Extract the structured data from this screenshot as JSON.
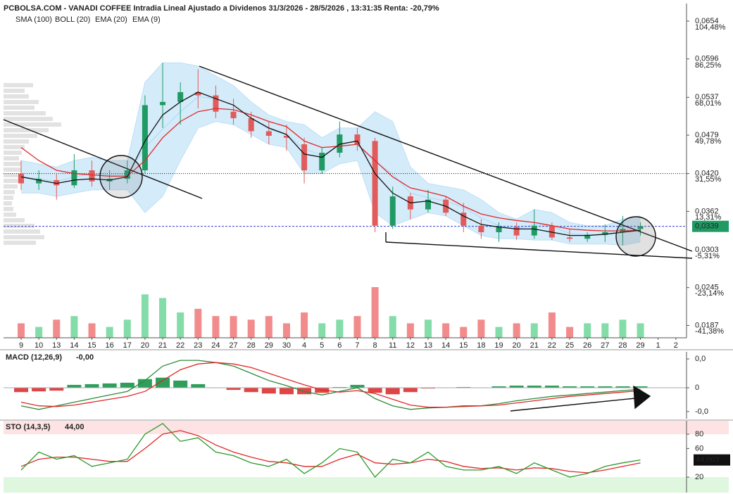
{
  "header": {
    "title": "PCBOLSA.COM - VANADI COFFEE Intradia Lineal Ajustado a Dividenos 31/3/2026 - 28/5/2026 , 13:31:35 Renta: -20,79%"
  },
  "chart_data": [
    {
      "type": "candlestick",
      "categories": [
        "9",
        "10",
        "13",
        "14",
        "15",
        "16",
        "17",
        "20",
        "21",
        "22",
        "23",
        "24",
        "27",
        "28",
        "29",
        "30",
        "4",
        "5",
        "6",
        "7",
        "8",
        "11",
        "12",
        "13",
        "14",
        "15",
        "18",
        "19",
        "20",
        "21",
        "22",
        "25",
        "26",
        "27",
        "28",
        "29",
        "1",
        "2"
      ],
      "open": [
        0.042,
        0.0405,
        0.041,
        0.0402,
        0.0425,
        0.0408,
        0.0412,
        0.0425,
        0.0525,
        0.053,
        0.0545,
        0.054,
        0.0515,
        0.0505,
        0.0485,
        0.0478,
        0.0465,
        0.0425,
        0.0452,
        0.048,
        0.047,
        0.034,
        0.0385,
        0.0365,
        0.038,
        0.036,
        0.034,
        0.033,
        0.0338,
        0.0325,
        0.034,
        0.0322,
        0.032,
        0.0326,
        0.033,
        0.0335,
        null,
        null
      ],
      "high": [
        0.044,
        0.0425,
        0.042,
        0.045,
        0.044,
        0.0425,
        0.044,
        0.054,
        0.059,
        0.056,
        0.058,
        0.0555,
        0.0535,
        0.0515,
        0.05,
        0.0495,
        0.0475,
        0.046,
        0.05,
        0.049,
        0.0475,
        0.04,
        0.039,
        0.0395,
        0.0385,
        0.0375,
        0.035,
        0.0345,
        0.0345,
        0.0365,
        0.0345,
        0.0335,
        0.033,
        0.0342,
        0.0355,
        0.0345,
        null,
        null
      ],
      "low": [
        0.0395,
        0.0395,
        0.038,
        0.0398,
        0.04,
        0.0395,
        0.0405,
        0.042,
        0.049,
        0.0495,
        0.052,
        0.0505,
        0.0495,
        0.0475,
        0.0465,
        0.0455,
        0.0405,
        0.042,
        0.0445,
        0.0455,
        0.033,
        0.0335,
        0.035,
        0.036,
        0.0355,
        0.033,
        0.032,
        0.0315,
        0.0318,
        0.032,
        0.0318,
        0.0315,
        0.0315,
        0.0315,
        0.031,
        0.0325,
        null,
        null
      ],
      "close": [
        0.0405,
        0.0412,
        0.0402,
        0.0425,
        0.0408,
        0.0412,
        0.0425,
        0.0525,
        0.053,
        0.0545,
        0.054,
        0.0515,
        0.0505,
        0.0485,
        0.0478,
        0.0475,
        0.0425,
        0.0452,
        0.048,
        0.0465,
        0.034,
        0.0385,
        0.0365,
        0.038,
        0.036,
        0.034,
        0.033,
        0.0338,
        0.0325,
        0.034,
        0.0322,
        0.032,
        0.0326,
        0.033,
        0.0335,
        0.0339,
        null,
        null
      ],
      "volume": [
        20,
        15,
        25,
        30,
        20,
        15,
        25,
        60,
        55,
        35,
        40,
        30,
        30,
        25,
        30,
        20,
        35,
        20,
        25,
        30,
        70,
        30,
        20,
        25,
        20,
        15,
        25,
        15,
        20,
        20,
        35,
        15,
        20,
        20,
        25,
        20,
        null,
        null
      ],
      "up_color": "#1f9a63",
      "down_color": "#e25b5b",
      "volume_up_color": "#84dca8",
      "volume_down_color": "#f28b8b",
      "series": [
        {
          "name": "SMA (100)",
          "color": "#a9d8f5",
          "values": [
            0.0415,
            0.0412,
            0.0408,
            0.0415,
            0.042,
            0.0418,
            0.0418,
            0.046,
            0.0488,
            0.0515,
            0.0538,
            0.0535,
            0.0525,
            0.0505,
            0.0488,
            0.048,
            0.0458,
            0.0448,
            0.0462,
            0.0465,
            0.0438,
            0.042,
            0.039,
            0.0383,
            0.0378,
            0.0368,
            0.0352,
            0.034,
            0.0335,
            0.0342,
            0.0339,
            0.0328,
            0.0326,
            0.0326,
            0.033,
            0.0335,
            null,
            null
          ]
        },
        {
          "name": "BOLL (20)",
          "color": "#cccccc",
          "fill": "#d4ebfa",
          "upper": [
            0.044,
            0.0435,
            0.043,
            0.044,
            0.0445,
            0.044,
            0.044,
            0.056,
            0.059,
            0.059,
            0.0585,
            0.057,
            0.0555,
            0.053,
            0.051,
            0.05,
            0.0495,
            0.0475,
            0.049,
            0.049,
            0.0515,
            0.05,
            0.043,
            0.0405,
            0.04,
            0.0395,
            0.038,
            0.036,
            0.035,
            0.0365,
            0.036,
            0.0345,
            0.034,
            0.034,
            0.035,
            0.0355,
            null,
            null
          ],
          "lower": [
            0.039,
            0.039,
            0.0385,
            0.039,
            0.0395,
            0.0395,
            0.0395,
            0.036,
            0.0385,
            0.044,
            0.049,
            0.05,
            0.0495,
            0.048,
            0.0465,
            0.046,
            0.042,
            0.042,
            0.0435,
            0.044,
            0.036,
            0.034,
            0.035,
            0.036,
            0.0355,
            0.034,
            0.0325,
            0.032,
            0.032,
            0.0318,
            0.0318,
            0.0312,
            0.0312,
            0.0312,
            0.031,
            0.0315,
            null,
            null
          ]
        },
        {
          "name": "EMA (20)",
          "color": "#e02828",
          "values": [
            0.046,
            0.044,
            0.0425,
            0.042,
            0.0418,
            0.0416,
            0.0416,
            0.044,
            0.0475,
            0.05,
            0.0515,
            0.052,
            0.0518,
            0.051,
            0.05,
            0.0492,
            0.047,
            0.046,
            0.0462,
            0.0465,
            0.044,
            0.0415,
            0.0398,
            0.0392,
            0.0385,
            0.037,
            0.0358,
            0.0352,
            0.0348,
            0.0345,
            0.034,
            0.0335,
            0.0333,
            0.0332,
            0.0332,
            0.0333,
            null,
            null
          ]
        },
        {
          "name": "EMA (9)",
          "color": "#111111",
          "values": [
            0.0415,
            0.041,
            0.0405,
            0.041,
            0.0412,
            0.041,
            0.0415,
            0.047,
            0.051,
            0.053,
            0.0545,
            0.0535,
            0.0525,
            0.0505,
            0.049,
            0.048,
            0.045,
            0.0445,
            0.0465,
            0.047,
            0.042,
            0.039,
            0.0375,
            0.0378,
            0.037,
            0.0355,
            0.0342,
            0.0338,
            0.0335,
            0.0335,
            0.033,
            0.0325,
            0.0325,
            0.0327,
            0.033,
            0.0333,
            null,
            null
          ]
        }
      ],
      "ylim": [
        0.0168,
        0.0681
      ],
      "yticks": [
        {
          "value": 0.0654,
          "label": "0,0654"
        },
        {
          "value": 0.0596,
          "label": "0,0596"
        },
        {
          "value": 0.0537,
          "label": "0,0537"
        },
        {
          "value": 0.0479,
          "label": "0,0479"
        },
        {
          "value": 0.042,
          "label": "0,0420"
        },
        {
          "value": 0.0362,
          "label": "0,0362"
        },
        {
          "value": 0.0303,
          "label": "0,0303"
        },
        {
          "value": 0.0245,
          "label": "0,0245"
        },
        {
          "value": 0.0187,
          "label": "0,0187"
        }
      ],
      "y2lim": [
        -47.47,
        112.9
      ],
      "y2ticks": [
        {
          "value": 104.48,
          "label": "104,48%"
        },
        {
          "value": 86.25,
          "label": "86,25%"
        },
        {
          "value": 68.01,
          "label": "68,01%"
        },
        {
          "value": 49.78,
          "label": "49,78%"
        },
        {
          "value": 31.55,
          "label": "31,55%"
        },
        {
          "value": 13.31,
          "label": "13,31%"
        },
        {
          "value": -5.31,
          "label": "-5,31%"
        },
        {
          "value": -23.14,
          "label": "-23,14%"
        },
        {
          "value": -41.38,
          "label": "-41,38%"
        }
      ],
      "reference_line": 0.042,
      "current": {
        "value": 0.0339,
        "label": "0,0339"
      }
    },
    {
      "type": "macd",
      "title": "MACD (12,26,9)",
      "last_value": "-0,00",
      "macd": [
        -0.0025,
        -0.003,
        -0.0025,
        -0.002,
        -0.0015,
        -0.001,
        -0.0005,
        0.001,
        0.003,
        0.0038,
        0.0038,
        0.0035,
        0.003,
        0.002,
        0.001,
        0.0003,
        -0.0005,
        -0.001,
        -0.0005,
        0.0,
        -0.0015,
        -0.0025,
        -0.003,
        -0.0028,
        -0.0027,
        -0.0025,
        -0.0025,
        -0.0022,
        -0.0018,
        -0.0015,
        -0.0012,
        -0.001,
        -0.0008,
        -0.0006,
        -0.0004,
        -0.0002,
        null,
        null
      ],
      "signal": [
        -0.002,
        -0.0025,
        -0.0026,
        -0.0024,
        -0.002,
        -0.0016,
        -0.0012,
        -0.0005,
        0.001,
        0.0025,
        0.0033,
        0.0035,
        0.0033,
        0.0028,
        0.002,
        0.0012,
        0.0004,
        -0.0003,
        -0.0006,
        -0.0004,
        -0.0008,
        -0.0016,
        -0.0024,
        -0.0027,
        -0.0027,
        -0.0026,
        -0.0025,
        -0.0024,
        -0.0021,
        -0.0018,
        -0.0015,
        -0.0012,
        -0.001,
        -0.0008,
        -0.0006,
        -0.0004,
        null,
        null
      ],
      "histogram": [
        -0.0006,
        -0.0005,
        -0.0004,
        0.0004,
        0.0005,
        0.0006,
        0.0007,
        0.0012,
        0.0014,
        0.001,
        0.0005,
        0.0,
        -0.0003,
        -0.0006,
        -0.0008,
        -0.0009,
        -0.0009,
        -0.0007,
        0.0001,
        0.0004,
        -0.0007,
        -0.0009,
        -0.0006,
        -0.0001,
        0.0,
        0.0001,
        0.0,
        0.0002,
        0.0003,
        0.0003,
        0.0003,
        0.0002,
        0.0002,
        0.0002,
        0.0002,
        0.0002,
        null,
        null
      ],
      "colors": {
        "macd": "#2e8b3a",
        "signal": "#e02828",
        "up": "#2e9e5b",
        "down": "#e04545"
      },
      "ylim": [
        -0.00429,
        0.00498
      ],
      "yticks": [
        {
          "value": 0.004,
          "label": "0,0"
        },
        0,
        {
          "value": -0.0033,
          "label": "-0,0"
        }
      ]
    },
    {
      "type": "stochastic",
      "title": "STO (14,3,5)",
      "last_value": "44,00",
      "k": [
        30,
        55,
        45,
        50,
        35,
        40,
        45,
        80,
        95,
        70,
        75,
        55,
        50,
        40,
        35,
        45,
        25,
        40,
        60,
        55,
        20,
        45,
        40,
        55,
        35,
        30,
        30,
        35,
        25,
        40,
        30,
        20,
        25,
        35,
        40,
        44,
        null,
        null
      ],
      "d": [
        35,
        45,
        48,
        48,
        45,
        42,
        42,
        60,
        80,
        85,
        78,
        65,
        55,
        48,
        42,
        40,
        35,
        35,
        45,
        52,
        40,
        38,
        40,
        45,
        42,
        35,
        32,
        33,
        30,
        33,
        32,
        28,
        26,
        30,
        35,
        40,
        null,
        null
      ],
      "colors": {
        "k": "#2a9a2a",
        "d": "#e02828",
        "overbought": "#fde3e3",
        "oversold": "#dff7df"
      },
      "overbought": 80,
      "oversold": 20,
      "ylim": [
        -1.6,
        98.7
      ],
      "yticks": [
        80,
        60,
        20
      ],
      "current": {
        "value": 44.003,
        "label": "44,003"
      }
    }
  ]
}
